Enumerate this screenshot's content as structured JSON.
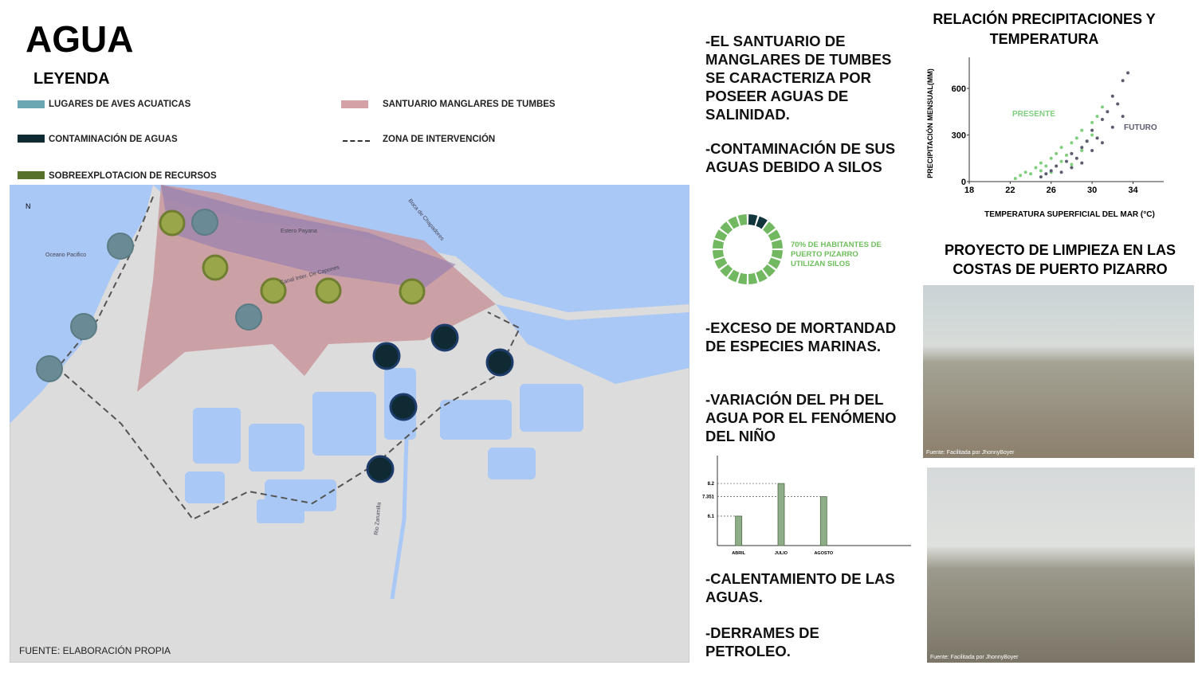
{
  "title": "AGUA",
  "legend": {
    "title": "LEYENDA",
    "items": [
      "LUGARES DE AVES ACUATICAS",
      "SANTUARIO MANGLARES DE TUMBES",
      "CONTAMINACIÓN DE AGUAS",
      "ZONA DE INTERVENCIÓN",
      "SOBREEXPLOTACION DE RECURSOS"
    ]
  },
  "map": {
    "labels": [
      "N",
      "Oceano Pacifico",
      "Estero Payana",
      "Canal Inter. De Capones",
      "Boca de Chapadores",
      "Rio Zarumilla"
    ],
    "source": "FUENTE: ELABORACIÓN PROPIA"
  },
  "notes": [
    "-EL SANTUARIO DE MANGLARES DE TUMBES SE CARACTERIZA POR POSEER AGUAS  DE SALINIDAD.",
    "-CONTAMINACIÓN DE SUS AGUAS DEBIDO A SILOS",
    "-EXCESO DE MORTANDAD DE ESPECIES MARINAS.",
    "-VARIACIÓN DEL PH DEL AGUA POR EL FENÓMENO DEL NIÑO",
    "-CALENTAMIENTO DE LAS AGUAS.",
    "-DERRAMES DE PETROLEO."
  ],
  "donut_label": "70% DE HABITANTES DE PUERTO PIZARRO UTILIZAN SILOS",
  "chart_data": [
    {
      "type": "scatter",
      "title": "RELACIÓN PRECIPITACIONES Y TEMPERATURA",
      "x_label": "TEMPERATURA SUPERFICIAL DEL MAR (°C)",
      "y_label": "PRECIPITACIÓN MENSUAL(MM)",
      "xlim": [
        18,
        37
      ],
      "xticks": [
        18,
        22,
        26,
        30,
        34
      ],
      "ylim": [
        0,
        800
      ],
      "yticks": [
        0,
        300,
        600
      ],
      "series": [
        {
          "name": "PRESENTE",
          "color": "#7fcf7f",
          "x": [
            22.5,
            23,
            23.5,
            24,
            24.5,
            25,
            25,
            25.5,
            26,
            26,
            26.5,
            27,
            27,
            27.5,
            28,
            28,
            28.5,
            29,
            29,
            29.5,
            30,
            30,
            30.5,
            31
          ],
          "values": [
            20,
            40,
            60,
            50,
            90,
            70,
            120,
            100,
            150,
            60,
            180,
            130,
            220,
            170,
            250,
            110,
            280,
            200,
            330,
            260,
            380,
            300,
            420,
            480
          ]
        },
        {
          "name": "FUTURO",
          "color": "#5c5c70",
          "x": [
            25,
            25.5,
            26,
            26.5,
            27,
            27.5,
            28,
            28,
            28.5,
            29,
            29,
            29.5,
            30,
            30,
            30.5,
            31,
            31,
            31.5,
            32,
            32,
            32.5,
            33,
            33,
            33.5
          ],
          "values": [
            30,
            50,
            70,
            100,
            60,
            130,
            90,
            180,
            150,
            220,
            120,
            260,
            200,
            330,
            280,
            400,
            250,
            450,
            350,
            550,
            500,
            650,
            420,
            700
          ]
        }
      ]
    },
    {
      "type": "bar",
      "categories": [
        "ABRIL",
        "JULIO",
        "AGOSTO"
      ],
      "values": [
        6.1,
        8.2,
        7.351
      ],
      "color": "#8fae88",
      "ylim": [
        4.2,
        10
      ],
      "yticks": [
        6.1,
        7.351,
        8.2
      ]
    }
  ],
  "photos": {
    "title": "PROYECTO DE LIMPIEZA EN LAS COSTAS DE PUERTO PIZARRO",
    "captions": [
      "Fuente: Facilitada por JhonnyBoyer",
      "Fuente: Facilitada por JhonnyBoyer"
    ]
  }
}
